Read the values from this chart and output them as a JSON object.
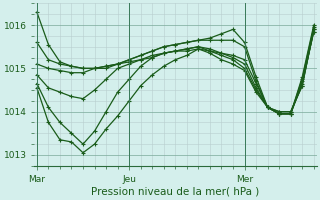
{
  "xlabel": "Pression niveau de la mer( hPa )",
  "bg_color": "#d4efec",
  "line_color": "#1a5c1a",
  "grid_color": "#b8cece",
  "grid_color_major": "#7aaa9a",
  "ylim": [
    1012.75,
    1016.5
  ],
  "yticks": [
    1013,
    1014,
    1015,
    1016
  ],
  "xtick_labels": [
    "Mar",
    "Jeu",
    "Mer"
  ],
  "n_points": 25,
  "series": [
    [
      1016.3,
      1015.55,
      1015.15,
      1015.05,
      1015.0,
      1015.0,
      1015.0,
      1015.1,
      1015.2,
      1015.3,
      1015.4,
      1015.5,
      1015.55,
      1015.6,
      1015.65,
      1015.7,
      1015.8,
      1015.9,
      1015.6,
      1014.8,
      1014.1,
      1013.95,
      1013.95,
      1014.8,
      1016.0
    ],
    [
      1015.6,
      1015.2,
      1015.1,
      1015.05,
      1015.0,
      1015.0,
      1015.05,
      1015.1,
      1015.2,
      1015.3,
      1015.4,
      1015.5,
      1015.55,
      1015.6,
      1015.65,
      1015.65,
      1015.65,
      1015.65,
      1015.5,
      1014.7,
      1014.1,
      1013.95,
      1013.95,
      1014.75,
      1015.95
    ],
    [
      1015.1,
      1015.0,
      1014.95,
      1014.9,
      1014.9,
      1015.0,
      1015.05,
      1015.1,
      1015.15,
      1015.2,
      1015.3,
      1015.35,
      1015.4,
      1015.4,
      1015.45,
      1015.4,
      1015.35,
      1015.3,
      1015.2,
      1014.65,
      1014.1,
      1013.95,
      1013.95,
      1014.7,
      1015.85
    ],
    [
      1014.85,
      1014.55,
      1014.45,
      1014.35,
      1014.3,
      1014.5,
      1014.75,
      1015.0,
      1015.1,
      1015.2,
      1015.25,
      1015.35,
      1015.4,
      1015.45,
      1015.5,
      1015.45,
      1015.35,
      1015.25,
      1015.1,
      1014.55,
      1014.1,
      1013.95,
      1013.95,
      1014.65,
      1015.85
    ],
    [
      1014.65,
      1014.1,
      1013.75,
      1013.5,
      1013.25,
      1013.55,
      1014.0,
      1014.45,
      1014.75,
      1015.05,
      1015.25,
      1015.35,
      1015.4,
      1015.45,
      1015.5,
      1015.4,
      1015.3,
      1015.2,
      1015.0,
      1014.5,
      1014.1,
      1014.0,
      1014.0,
      1014.6,
      1015.9
    ],
    [
      1014.55,
      1013.75,
      1013.35,
      1013.3,
      1013.05,
      1013.25,
      1013.6,
      1013.9,
      1014.25,
      1014.6,
      1014.85,
      1015.05,
      1015.2,
      1015.3,
      1015.45,
      1015.35,
      1015.2,
      1015.1,
      1014.95,
      1014.45,
      1014.1,
      1014.0,
      1014.0,
      1014.6,
      1015.9
    ]
  ],
  "marker_size": 2.2,
  "line_width": 0.9,
  "figsize": [
    3.2,
    2.0
  ],
  "dpi": 100
}
